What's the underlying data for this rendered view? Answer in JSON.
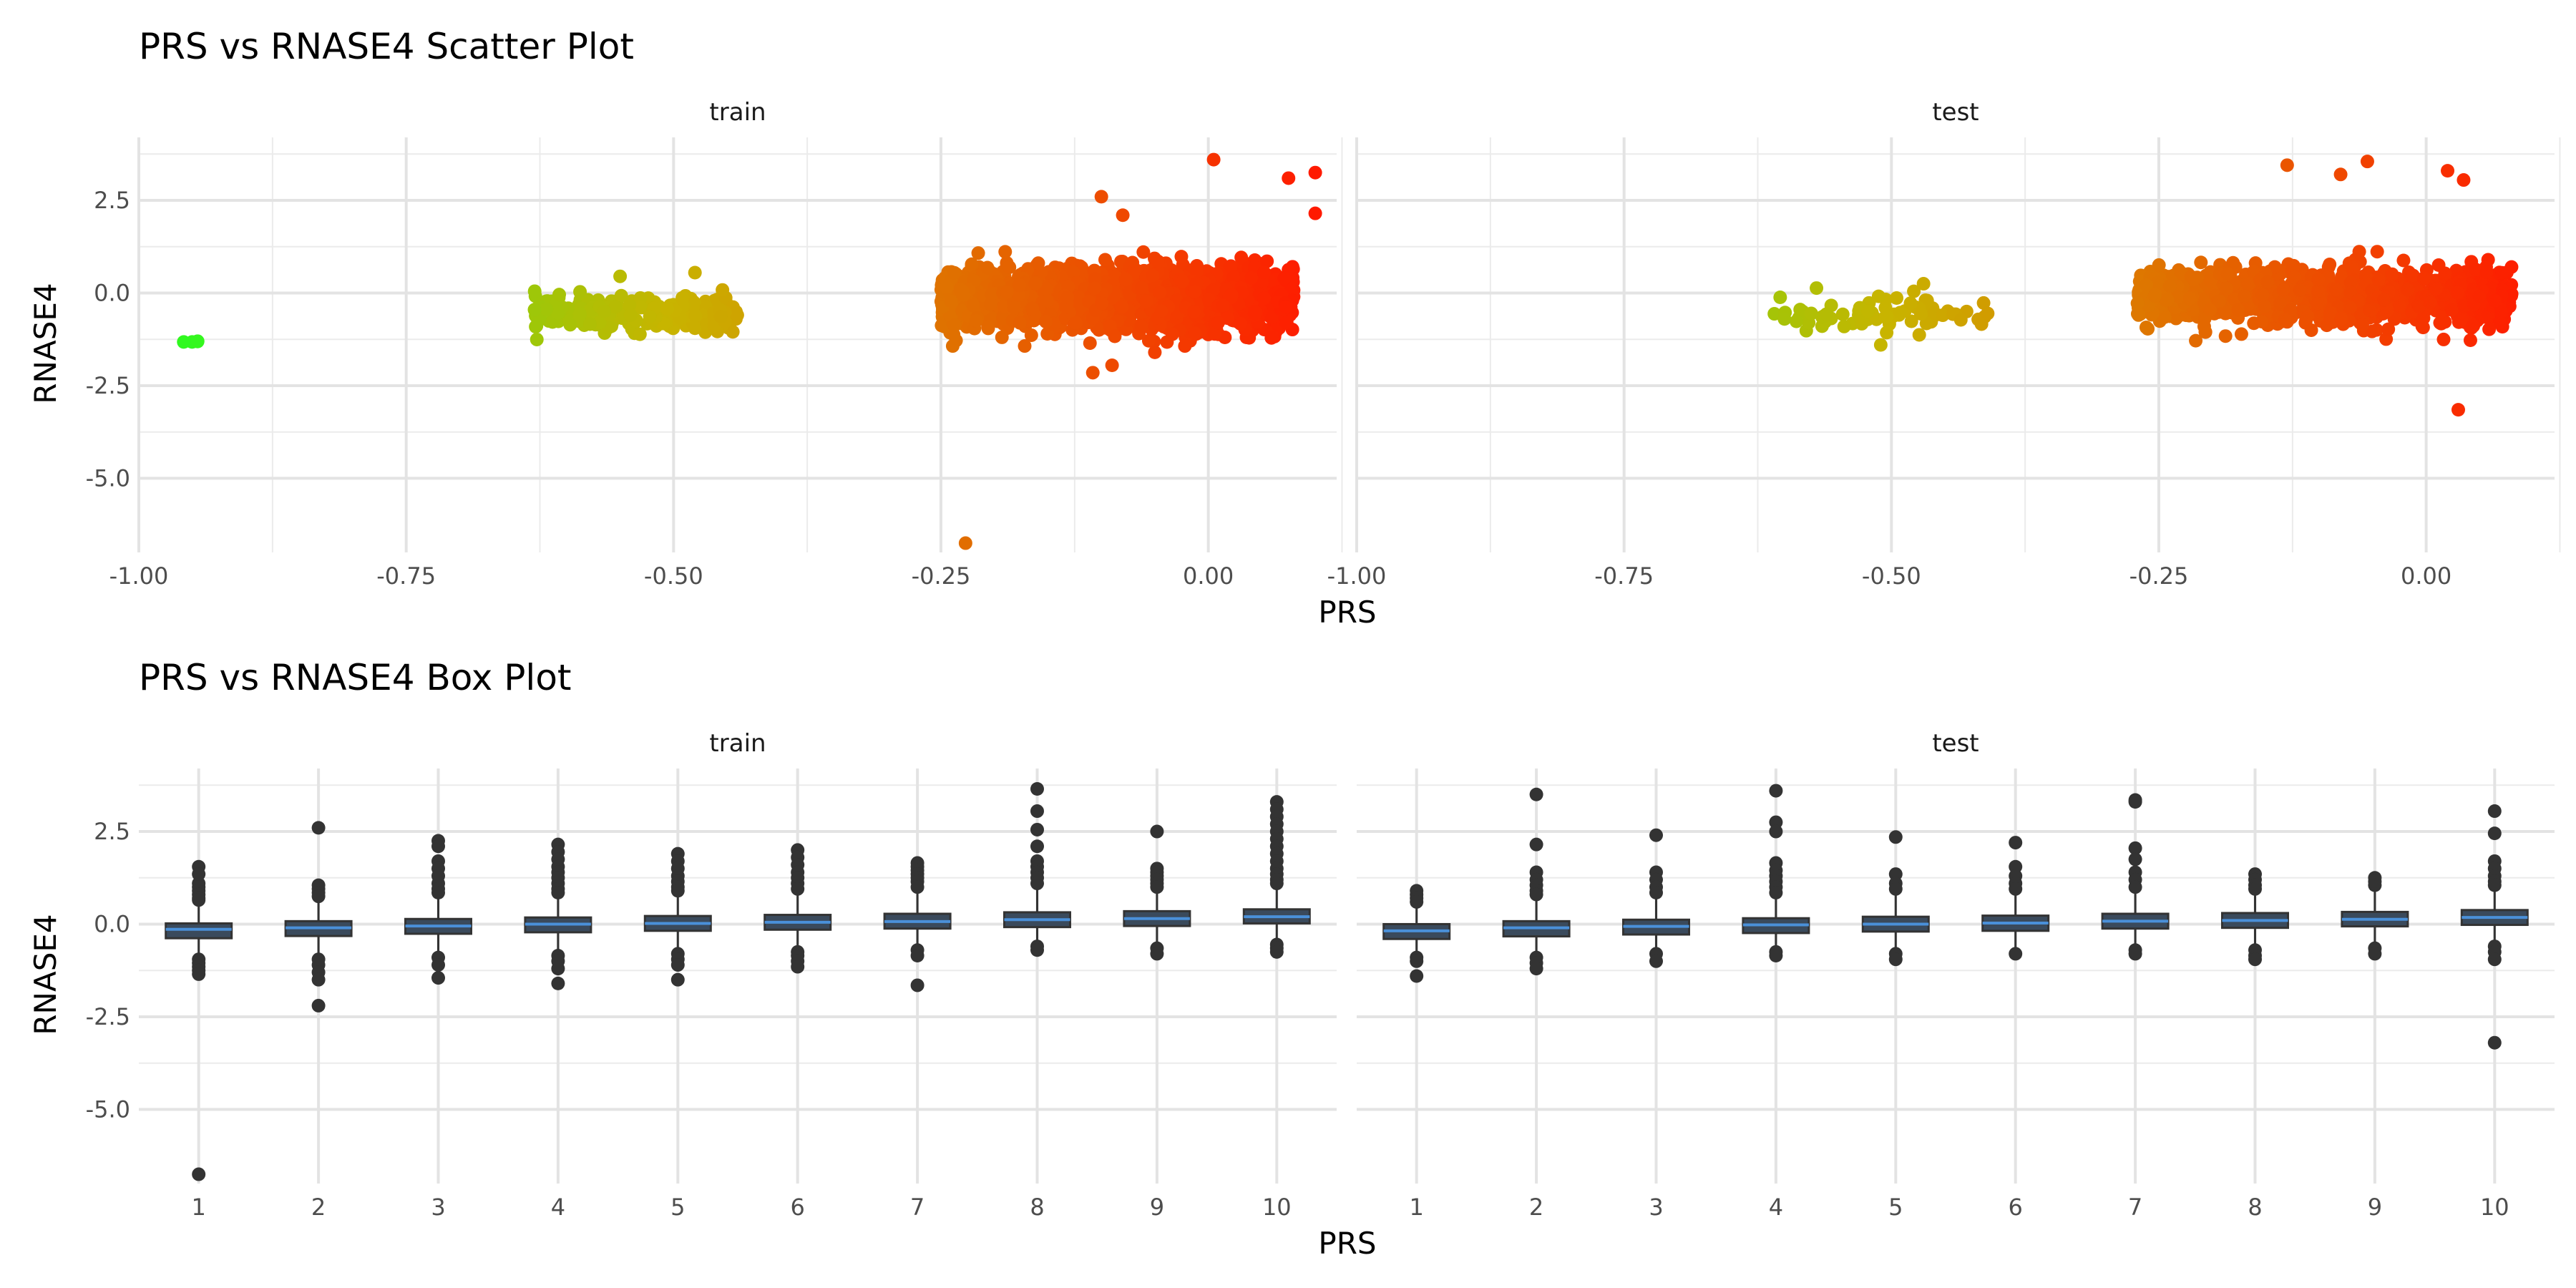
{
  "chart_data": [
    {
      "type": "scatter",
      "title": "PRS vs RNASE4 Scatter Plot",
      "xlabel": "PRS",
      "ylabel": "RNASE4",
      "facets": [
        "train",
        "test"
      ],
      "xlim": [
        -1.0,
        0.12
      ],
      "ylim": [
        -7.0,
        4.2
      ],
      "x_ticks": [
        -1.0,
        -0.75,
        -0.5,
        -0.25,
        0.0
      ],
      "x_tick_labels": [
        "-1.00",
        "-0.75",
        "-0.50",
        "-0.25",
        "0.00"
      ],
      "y_ticks": [
        -5.0,
        -2.5,
        0.0,
        2.5
      ],
      "y_tick_labels": [
        "-5.0",
        "-2.5",
        "0.0",
        "2.5"
      ],
      "grid": true,
      "color_gradient": {
        "low": "#22ff22",
        "mid": "#c8b400",
        "high": "#ff1a00"
      },
      "series": [
        {
          "name": "train",
          "clusters": [
            {
              "x_range": [
                -0.96,
                -0.945
              ],
              "y_mean": -1.3,
              "y_sd": 0.02,
              "n": 2
            },
            {
              "x_range": [
                -0.63,
                -0.44
              ],
              "y_mean": -0.55,
              "y_sd": 0.22,
              "n": 260
            },
            {
              "x_range": [
                -0.25,
                0.08
              ],
              "y_mean": -0.15,
              "y_sd": 0.4,
              "n": 2200
            }
          ],
          "points": [
            {
              "x": -0.958,
              "y": -1.32
            },
            {
              "x": -0.945,
              "y": -1.3
            },
            {
              "x": -0.227,
              "y": -6.75
            },
            {
              "x": 0.005,
              "y": 3.6
            },
            {
              "x": 0.1,
              "y": 3.25
            },
            {
              "x": 0.075,
              "y": 3.1
            },
            {
              "x": 0.1,
              "y": 2.15
            },
            {
              "x": -0.1,
              "y": 2.6
            },
            {
              "x": -0.108,
              "y": -2.15
            },
            {
              "x": -0.09,
              "y": -1.95
            },
            {
              "x": -0.55,
              "y": 0.45
            },
            {
              "x": -0.48,
              "y": 0.55
            },
            {
              "x": -0.63,
              "y": -0.45
            },
            {
              "x": -0.08,
              "y": 2.1
            },
            {
              "x": -0.05,
              "y": -1.6
            }
          ]
        },
        {
          "name": "test",
          "clusters": [
            {
              "x_range": [
                -0.61,
                -0.41
              ],
              "y_mean": -0.55,
              "y_sd": 0.25,
              "n": 75
            },
            {
              "x_range": [
                -0.27,
                0.08
              ],
              "y_mean": -0.1,
              "y_sd": 0.38,
              "n": 1100
            }
          ],
          "points": [
            {
              "x": -0.13,
              "y": 3.45
            },
            {
              "x": -0.055,
              "y": 3.55
            },
            {
              "x": 0.02,
              "y": 3.3
            },
            {
              "x": 0.035,
              "y": 3.05
            },
            {
              "x": -0.08,
              "y": 3.2
            },
            {
              "x": 0.03,
              "y": -3.15
            },
            {
              "x": -0.51,
              "y": -1.4
            },
            {
              "x": -0.6,
              "y": -0.7
            },
            {
              "x": -0.41,
              "y": -0.55
            },
            {
              "x": -0.47,
              "y": 0.25
            }
          ]
        }
      ]
    },
    {
      "type": "box",
      "title": "PRS vs RNASE4 Box Plot",
      "xlabel": "PRS",
      "ylabel": "RNASE4",
      "facets": [
        "train",
        "test"
      ],
      "categories": [
        "1",
        "2",
        "3",
        "4",
        "5",
        "6",
        "7",
        "8",
        "9",
        "10"
      ],
      "ylim": [
        -7.0,
        4.2
      ],
      "y_ticks": [
        -5.0,
        -2.5,
        0.0,
        2.5
      ],
      "y_tick_labels": [
        "-5.0",
        "-2.5",
        "0.0",
        "2.5"
      ],
      "grid": true,
      "box_fill": "#3a4a5c",
      "median_color": "#4a90d9",
      "series": [
        {
          "name": "train",
          "boxes": [
            {
              "q1": -0.38,
              "median": -0.14,
              "q3": 0.02,
              "whisker_low": -0.95,
              "whisker_high": 0.55,
              "outliers": [
                1.55,
                1.35,
                1.1,
                1.0,
                0.9,
                0.8,
                0.7,
                0.65,
                -0.95,
                -1.05,
                -1.15,
                -1.25,
                -1.35,
                -6.75
              ]
            },
            {
              "q1": -0.32,
              "median": -0.1,
              "q3": 0.08,
              "whisker_low": -0.9,
              "whisker_high": 0.65,
              "outliers": [
                2.6,
                1.05,
                0.95,
                0.85,
                0.75,
                -0.95,
                -1.1,
                -1.3,
                -1.5,
                -2.2
              ]
            },
            {
              "q1": -0.26,
              "median": -0.05,
              "q3": 0.14,
              "whisker_low": -0.85,
              "whisker_high": 0.75,
              "outliers": [
                2.25,
                2.1,
                1.7,
                1.5,
                1.3,
                1.1,
                0.95,
                0.85,
                -0.9,
                -1.1,
                -1.45
              ]
            },
            {
              "q1": -0.22,
              "median": 0.0,
              "q3": 0.18,
              "whisker_low": -0.8,
              "whisker_high": 0.8,
              "outliers": [
                2.15,
                1.95,
                1.75,
                1.55,
                1.4,
                1.25,
                1.1,
                0.95,
                0.85,
                -0.85,
                -1.0,
                -1.2,
                -1.6
              ]
            },
            {
              "q1": -0.18,
              "median": 0.02,
              "q3": 0.22,
              "whisker_low": -0.75,
              "whisker_high": 0.8,
              "outliers": [
                1.9,
                1.7,
                1.5,
                1.3,
                1.15,
                1.0,
                0.9,
                -0.8,
                -0.95,
                -1.1,
                -1.5
              ]
            },
            {
              "q1": -0.15,
              "median": 0.05,
              "q3": 0.25,
              "whisker_low": -0.7,
              "whisker_high": 0.85,
              "outliers": [
                2.0,
                1.8,
                1.6,
                1.4,
                1.25,
                1.1,
                0.95,
                -0.75,
                -0.85,
                -1.0,
                -1.15
              ]
            },
            {
              "q1": -0.12,
              "median": 0.07,
              "q3": 0.28,
              "whisker_low": -0.65,
              "whisker_high": 0.9,
              "outliers": [
                1.65,
                1.55,
                1.45,
                1.35,
                1.25,
                1.15,
                1.0,
                -0.7,
                -0.85,
                -1.65
              ]
            },
            {
              "q1": -0.08,
              "median": 0.12,
              "q3": 0.32,
              "whisker_low": -0.6,
              "whisker_high": 0.95,
              "outliers": [
                3.65,
                3.05,
                2.55,
                2.1,
                1.7,
                1.55,
                1.4,
                1.25,
                1.1,
                -0.6,
                -0.7
              ]
            },
            {
              "q1": -0.05,
              "median": 0.15,
              "q3": 0.35,
              "whisker_low": -0.55,
              "whisker_high": 0.95,
              "outliers": [
                2.5,
                1.5,
                1.4,
                1.3,
                1.2,
                1.1,
                1.0,
                -0.65,
                -0.8
              ]
            },
            {
              "q1": 0.02,
              "median": 0.2,
              "q3": 0.4,
              "whisker_low": -0.5,
              "whisker_high": 1.0,
              "outliers": [
                3.3,
                3.1,
                2.9,
                2.7,
                2.5,
                2.3,
                2.1,
                1.9,
                1.7,
                1.5,
                1.35,
                1.2,
                1.1,
                -0.55,
                -0.65,
                -0.75
              ]
            }
          ]
        },
        {
          "name": "test",
          "boxes": [
            {
              "q1": -0.4,
              "median": -0.18,
              "q3": 0.0,
              "whisker_low": -0.85,
              "whisker_high": 0.55,
              "outliers": [
                0.9,
                0.8,
                0.7,
                0.6,
                -0.9,
                -1.0,
                -1.4
              ]
            },
            {
              "q1": -0.33,
              "median": -0.1,
              "q3": 0.08,
              "whisker_low": -0.85,
              "whisker_high": 0.65,
              "outliers": [
                3.5,
                2.15,
                1.4,
                1.2,
                1.05,
                0.9,
                0.8,
                -0.9,
                -1.05,
                -1.2
              ]
            },
            {
              "q1": -0.28,
              "median": -0.06,
              "q3": 0.12,
              "whisker_low": -0.8,
              "whisker_high": 0.7,
              "outliers": [
                2.4,
                1.4,
                1.2,
                1.0,
                0.85,
                -0.8,
                -1.0
              ]
            },
            {
              "q1": -0.24,
              "median": -0.02,
              "q3": 0.16,
              "whisker_low": -0.75,
              "whisker_high": 0.75,
              "outliers": [
                3.6,
                2.75,
                2.5,
                1.65,
                1.45,
                1.3,
                1.15,
                1.0,
                0.85,
                -0.75,
                -0.85
              ]
            },
            {
              "q1": -0.2,
              "median": 0.0,
              "q3": 0.2,
              "whisker_low": -0.75,
              "whisker_high": 0.8,
              "outliers": [
                2.35,
                1.35,
                1.1,
                0.95,
                -0.8,
                -0.95
              ]
            },
            {
              "q1": -0.18,
              "median": 0.03,
              "q3": 0.23,
              "whisker_low": -0.7,
              "whisker_high": 0.8,
              "outliers": [
                2.2,
                1.55,
                1.3,
                1.1,
                0.95,
                -0.8
              ]
            },
            {
              "q1": -0.12,
              "median": 0.08,
              "q3": 0.28,
              "whisker_low": -0.65,
              "whisker_high": 0.85,
              "outliers": [
                3.35,
                3.3,
                2.05,
                1.75,
                1.4,
                1.2,
                1.0,
                -0.7,
                -0.8
              ]
            },
            {
              "q1": -0.1,
              "median": 0.1,
              "q3": 0.3,
              "whisker_low": -0.65,
              "whisker_high": 0.85,
              "outliers": [
                1.35,
                1.2,
                1.05,
                0.95,
                -0.7,
                -0.85,
                -0.95
              ]
            },
            {
              "q1": -0.06,
              "median": 0.13,
              "q3": 0.33,
              "whisker_low": -0.6,
              "whisker_high": 0.9,
              "outliers": [
                1.25,
                1.15,
                1.05,
                -0.65,
                -0.8
              ]
            },
            {
              "q1": -0.02,
              "median": 0.18,
              "q3": 0.38,
              "whisker_low": -0.55,
              "whisker_high": 0.95,
              "outliers": [
                3.05,
                2.45,
                1.7,
                1.5,
                1.3,
                1.15,
                1.05,
                -0.6,
                -0.75,
                -0.95,
                -3.2
              ]
            }
          ]
        }
      ]
    }
  ]
}
